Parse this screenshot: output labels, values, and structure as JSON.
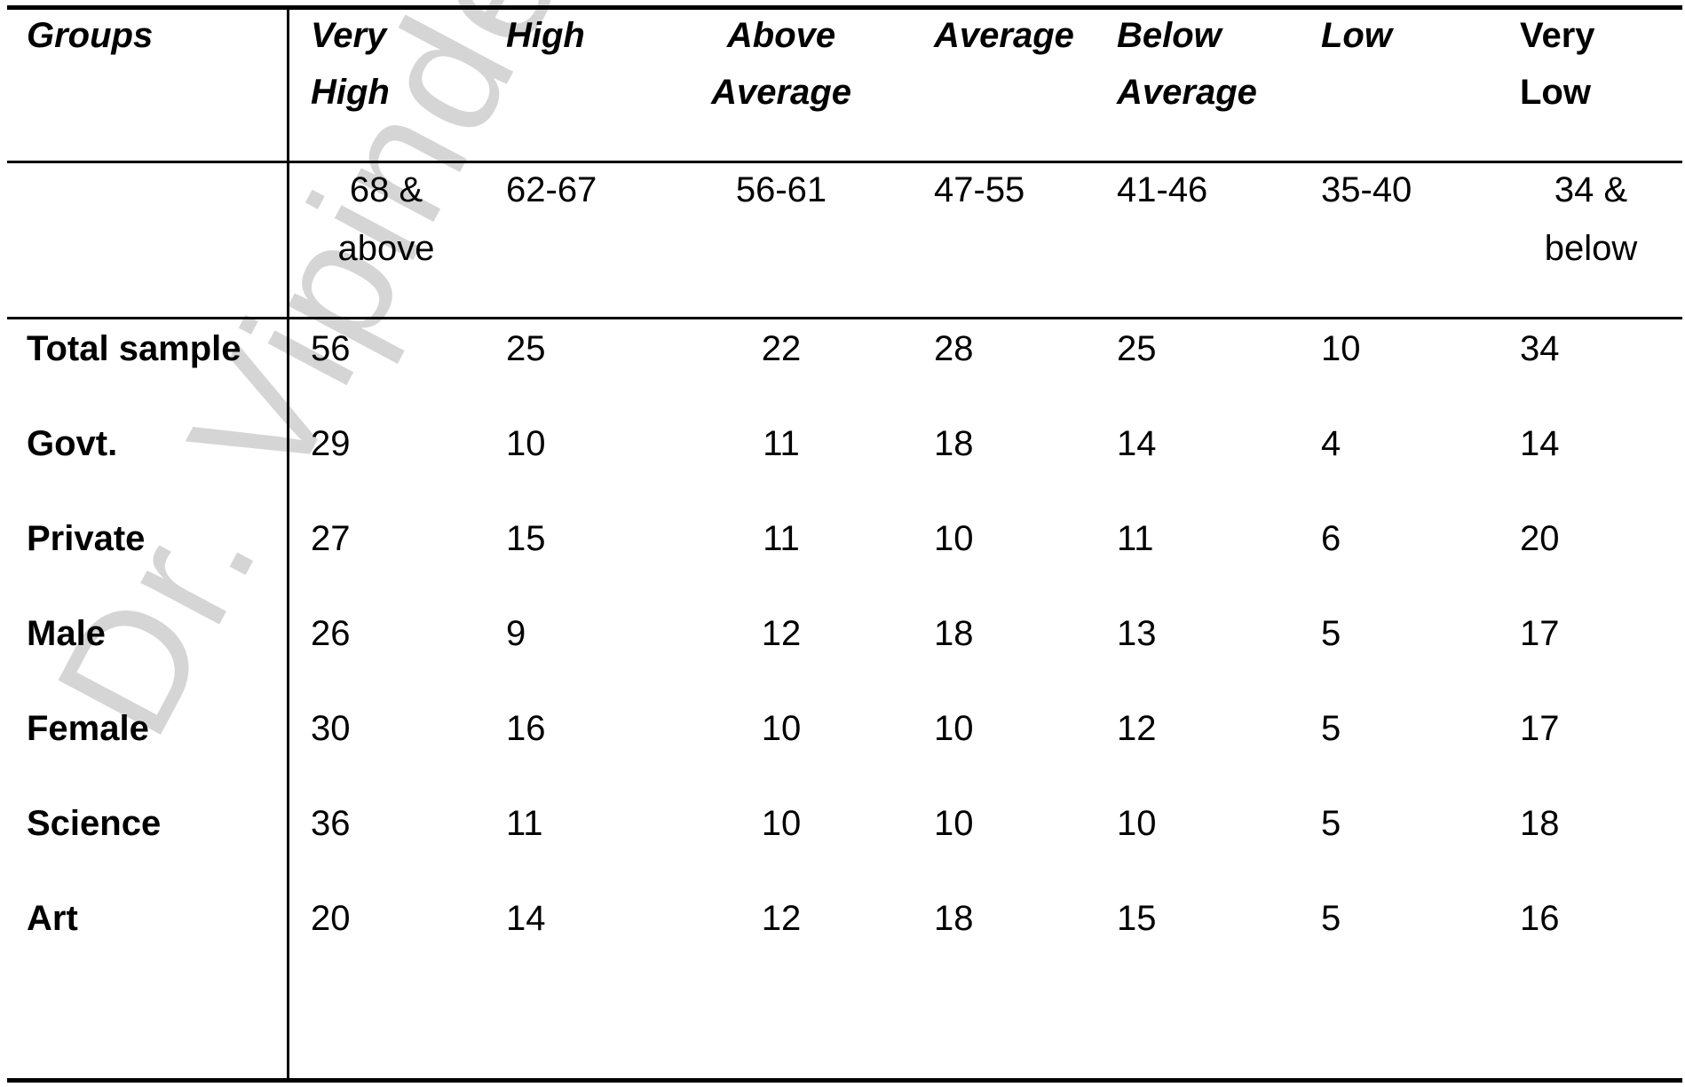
{
  "watermark": "Dr. Vipinder Nagra",
  "header": {
    "groups_label": "Groups",
    "columns": [
      {
        "line1": "Very",
        "line2": "High"
      },
      {
        "line1": "High",
        "line2": ""
      },
      {
        "line1": "Above",
        "line2": "Average"
      },
      {
        "line1": "Average",
        "line2": ""
      },
      {
        "line1": "Below",
        "line2": "Average"
      },
      {
        "line1": "Low",
        "line2": ""
      },
      {
        "line1": "Very",
        "line2": "Low"
      }
    ]
  },
  "ranges": [
    {
      "line1": "68 &",
      "line2": "above"
    },
    {
      "line1": "62-67",
      "line2": ""
    },
    {
      "line1": "56-61",
      "line2": ""
    },
    {
      "line1": "47-55",
      "line2": ""
    },
    {
      "line1": "41-46",
      "line2": ""
    },
    {
      "line1": "35-40",
      "line2": ""
    },
    {
      "line1": "34 &",
      "line2": "below"
    }
  ],
  "rows": [
    {
      "label": "Total sample",
      "values": [
        "56",
        "25",
        "22",
        "28",
        "25",
        "10",
        "34"
      ]
    },
    {
      "label": "Govt.",
      "values": [
        "29",
        "10",
        "11",
        "18",
        "14",
        "4",
        "14"
      ]
    },
    {
      "label": "Private",
      "values": [
        "27",
        "15",
        "11",
        "10",
        "11",
        "6",
        "20"
      ]
    },
    {
      "label": "Male",
      "values": [
        "26",
        "9",
        "12",
        "18",
        "13",
        "5",
        "17"
      ]
    },
    {
      "label": "Female",
      "values": [
        "30",
        "16",
        "10",
        "10",
        "12",
        "5",
        "17"
      ]
    },
    {
      "label": "Science",
      "values": [
        "36",
        "11",
        "10",
        "10",
        "10",
        "5",
        "18"
      ]
    },
    {
      "label": "Art",
      "values": [
        "20",
        "14",
        "12",
        "18",
        "15",
        "5",
        "16"
      ]
    }
  ]
}
